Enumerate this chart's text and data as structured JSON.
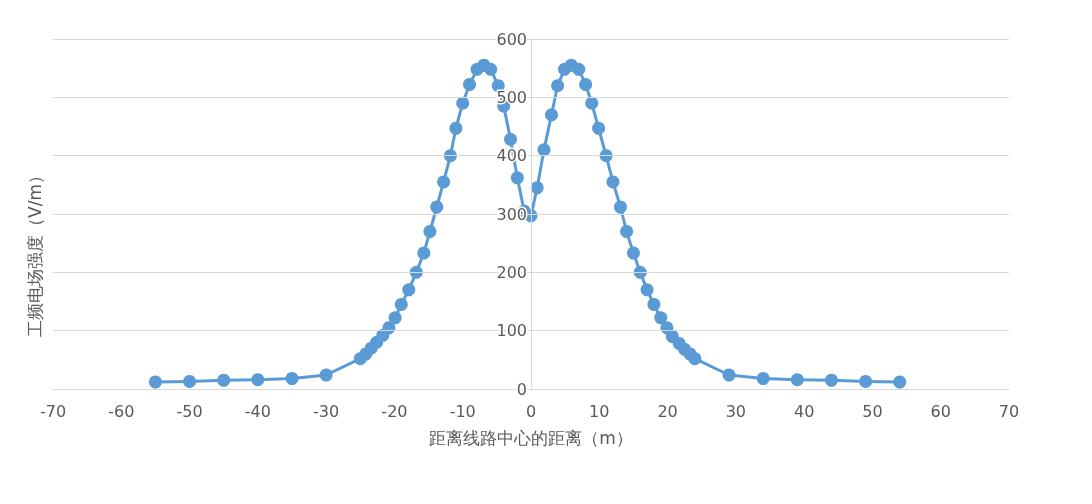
{
  "chart_data": {
    "type": "line",
    "xlabel": "距离线路中心的距离（m）",
    "ylabel": "工频电场强度（V/m）",
    "x": [
      -55,
      -50,
      -45,
      -40,
      -35,
      -30,
      -25,
      -24.2,
      -23.4,
      -22.6,
      -21.7,
      -20.8,
      -19.9,
      -19,
      -17.9,
      -16.8,
      -15.7,
      -14.8,
      -13.8,
      -12.8,
      -11.8,
      -11,
      -10,
      -9,
      -7.9,
      -6.9,
      -5.9,
      -4.8,
      -4,
      -3,
      -2,
      -1,
      0,
      0.9,
      1.9,
      3,
      3.9,
      4.9,
      5.9,
      7,
      8,
      8.9,
      9.9,
      11,
      12,
      13.1,
      14,
      15,
      16,
      17,
      18,
      19,
      19.9,
      20.7,
      21.7,
      22.5,
      23.3,
      24,
      29,
      34,
      39,
      44,
      49,
      54
    ],
    "series": [
      {
        "color": "#5b9bd5",
        "values": [
          12,
          13,
          15,
          16,
          18,
          24,
          52,
          60,
          70,
          80,
          92,
          105,
          122,
          145,
          170,
          200,
          233,
          270,
          312,
          355,
          400,
          447,
          490,
          522,
          548,
          555,
          548,
          520,
          485,
          428,
          362,
          305,
          297,
          345,
          410,
          470,
          520,
          548,
          555,
          548,
          522,
          490,
          447,
          400,
          355,
          312,
          270,
          233,
          200,
          170,
          145,
          122,
          105,
          90,
          78,
          68,
          60,
          52,
          24,
          18,
          16,
          15,
          13,
          12
        ]
      }
    ],
    "xlim": [
      -70,
      70
    ],
    "xticks": [
      -70,
      -60,
      -50,
      -40,
      -30,
      -20,
      -10,
      0,
      10,
      20,
      30,
      40,
      50,
      60,
      70
    ],
    "ylim": [
      0,
      600
    ],
    "yticks": [
      0,
      100,
      200,
      300,
      400,
      500,
      600
    ],
    "grid": "y",
    "marker": "circle",
    "line_style": "solid"
  }
}
